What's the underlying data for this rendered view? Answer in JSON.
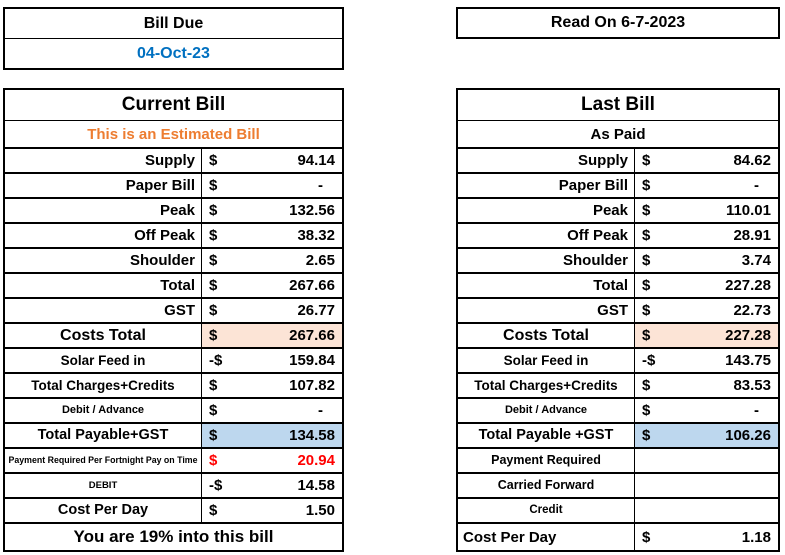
{
  "colors": {
    "date_blue": "#0070C0",
    "estimate_orange": "#ED7D31",
    "alert_red": "#FF0000",
    "costs_total_fill": "#FCE4D6",
    "payable_fill": "#BDD7EE",
    "border_black": "#000000"
  },
  "bill_due": {
    "title": "Bill Due",
    "date": "04-Oct-23"
  },
  "read_on": {
    "title": "Read On 6-7-2023"
  },
  "current_bill": {
    "title": "Current Bill",
    "subtitle": "This is an Estimated Bill",
    "footer": "You are 19% into this bill",
    "rows": [
      {
        "label": "Supply",
        "align": "right",
        "size": "lg",
        "cur": "$",
        "amt": "94.14"
      },
      {
        "label": "Paper Bill",
        "align": "right",
        "size": "lg",
        "cur": "$",
        "amt": "-"
      },
      {
        "label": "Peak",
        "align": "right",
        "size": "lg",
        "cur": "$",
        "amt": "132.56"
      },
      {
        "label": "Off Peak",
        "align": "right",
        "size": "lg",
        "cur": "$",
        "amt": "38.32"
      },
      {
        "label": "Shoulder",
        "align": "right",
        "size": "lg",
        "cur": "$",
        "amt": "2.65"
      },
      {
        "label": "Total",
        "align": "right",
        "size": "lg",
        "cur": "$",
        "amt": "267.66"
      },
      {
        "label": "GST",
        "align": "right",
        "size": "lg",
        "cur": "$",
        "amt": "26.77"
      },
      {
        "label": "Costs Total",
        "align": "center",
        "size": "xl",
        "cur": "$",
        "amt": "267.66",
        "fill": "peach"
      },
      {
        "label": "Solar Feed in",
        "align": "center",
        "size": "md",
        "cur": "-$",
        "amt": "159.84"
      },
      {
        "label": "Total Charges+Credits",
        "align": "center",
        "size": "md",
        "cur": "$",
        "amt": "107.82"
      },
      {
        "label": "Debit / Advance",
        "align": "center",
        "size": "sm",
        "cur": "$",
        "amt": "-"
      },
      {
        "label": "Total Payable+GST",
        "align": "center",
        "size": "lg2",
        "cur": "$",
        "amt": "134.58",
        "fill": "blue"
      },
      {
        "label": "Payment Required Per Fortnight Pay on Time",
        "align": "center",
        "size": "xs",
        "cur": "$",
        "amt": "20.94",
        "color": "red"
      },
      {
        "label": "DEBIT",
        "align": "center",
        "size": "xs2",
        "cur": "-$",
        "amt": "14.58"
      },
      {
        "label": "Cost Per Day",
        "align": "center",
        "size": "lg2",
        "cur": "$",
        "amt": "1.50"
      }
    ]
  },
  "last_bill": {
    "title": "Last Bill",
    "subtitle": "As Paid",
    "rows": [
      {
        "label": "Supply",
        "align": "right",
        "size": "lg",
        "cur": "$",
        "amt": "84.62"
      },
      {
        "label": "Paper Bill",
        "align": "right",
        "size": "lg",
        "cur": "$",
        "amt": "-"
      },
      {
        "label": "Peak",
        "align": "right",
        "size": "lg",
        "cur": "$",
        "amt": "110.01"
      },
      {
        "label": "Off Peak",
        "align": "right",
        "size": "lg",
        "cur": "$",
        "amt": "28.91"
      },
      {
        "label": "Shoulder",
        "align": "right",
        "size": "lg",
        "cur": "$",
        "amt": "3.74"
      },
      {
        "label": "Total",
        "align": "right",
        "size": "lg",
        "cur": "$",
        "amt": "227.28"
      },
      {
        "label": "GST",
        "align": "right",
        "size": "lg",
        "cur": "$",
        "amt": "22.73"
      },
      {
        "label": "Costs Total",
        "align": "center",
        "size": "xl",
        "cur": "$",
        "amt": "227.28",
        "fill": "peach"
      },
      {
        "label": "Solar Feed in",
        "align": "center",
        "size": "md",
        "cur": "-$",
        "amt": "143.75"
      },
      {
        "label": "Total Charges+Credits",
        "align": "center",
        "size": "md",
        "cur": "$",
        "amt": "83.53"
      },
      {
        "label": "Debit / Advance",
        "align": "center",
        "size": "sm",
        "cur": "$",
        "amt": "-"
      },
      {
        "label": "Total Payable +GST",
        "align": "center",
        "size": "lg2",
        "cur": "$",
        "amt": "106.26",
        "fill": "blue"
      },
      {
        "label": "Payment Required",
        "align": "center",
        "size": "md2",
        "cur": "",
        "amt": ""
      },
      {
        "label": "Carried Forward",
        "align": "center",
        "size": "md2",
        "cur": "",
        "amt": ""
      },
      {
        "label": "Credit",
        "align": "center",
        "size": "sm2",
        "cur": "",
        "amt": ""
      },
      {
        "label": "Cost Per Day",
        "align": "left",
        "size": "lg",
        "cur": "$",
        "amt": "1.18"
      }
    ]
  }
}
